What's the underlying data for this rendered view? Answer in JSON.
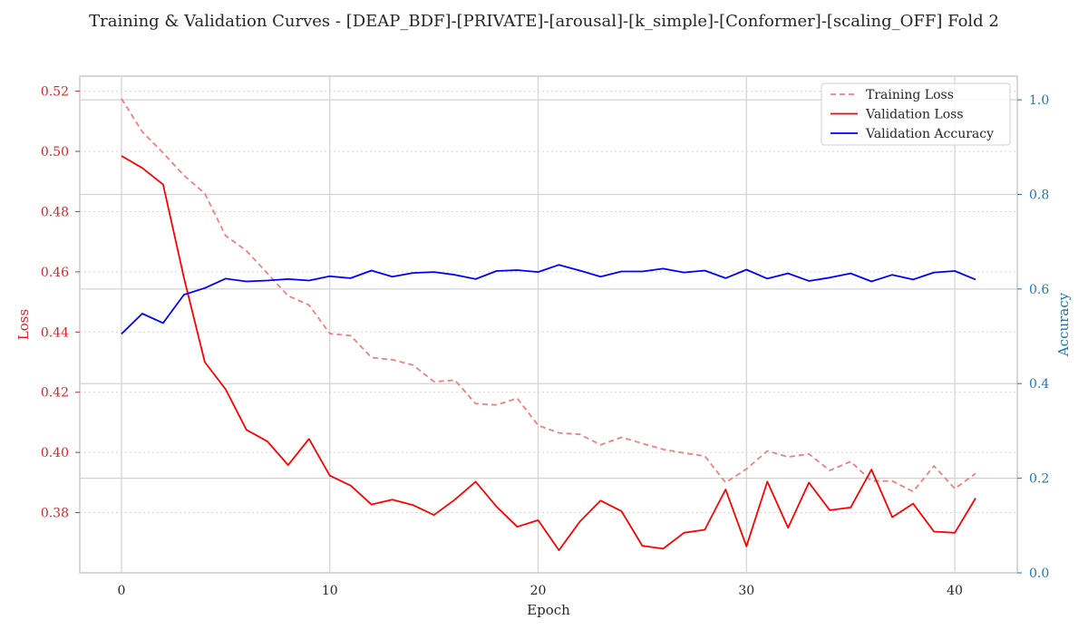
{
  "chart_data": {
    "type": "line",
    "title": "Training & Validation Curves - [DEAP_BDF]-[PRIVATE]-[arousal]-[k_simple]-[Conformer]-[scaling_OFF] Fold 2",
    "xlabel": "Epoch",
    "ylabel_left": "Loss",
    "ylabel_right": "Accuracy",
    "xlim": [
      -2,
      43
    ],
    "ylim_left": [
      0.36,
      0.525
    ],
    "ylim_right": [
      0.0,
      1.05
    ],
    "x_ticks": [
      0,
      10,
      20,
      30,
      40
    ],
    "y_ticks_left": [
      0.38,
      0.4,
      0.42,
      0.44,
      0.46,
      0.48,
      0.5,
      0.52
    ],
    "y_ticks_right": [
      0.0,
      0.2,
      0.4,
      0.6,
      0.8,
      1.0
    ],
    "grid": true,
    "legend_position": "top-right",
    "colors": {
      "left_axis": "#d62728",
      "right_axis": "#1f77b4",
      "training_loss": "#f08080",
      "validation_loss": "#ff0000",
      "validation_accuracy": "#0000ff",
      "grid": "#d3d3d3",
      "frame": "#cccccc"
    },
    "epochs": [
      0,
      1,
      2,
      3,
      4,
      5,
      6,
      7,
      8,
      9,
      10,
      11,
      12,
      13,
      14,
      15,
      16,
      17,
      18,
      19,
      20,
      21,
      22,
      23,
      24,
      25,
      26,
      27,
      28,
      29,
      30,
      31,
      32,
      33,
      34,
      35,
      36,
      37,
      38,
      39,
      40,
      41
    ],
    "series": [
      {
        "name": "Training Loss",
        "axis": "left",
        "style": "dashed",
        "values": [
          0.5175,
          0.5065,
          0.4995,
          0.492,
          0.486,
          0.472,
          0.467,
          0.4595,
          0.452,
          0.449,
          0.4395,
          0.4388,
          0.4315,
          0.4308,
          0.429,
          0.4235,
          0.424,
          0.4162,
          0.4158,
          0.418,
          0.409,
          0.4065,
          0.406,
          0.4025,
          0.405,
          0.403,
          0.401,
          0.3998,
          0.3988,
          0.39,
          0.3945,
          0.4005,
          0.3985,
          0.3995,
          0.394,
          0.397,
          0.3905,
          0.3905,
          0.387,
          0.3955,
          0.388,
          0.393
        ]
      },
      {
        "name": "Validation Loss",
        "axis": "left",
        "style": "solid",
        "values": [
          0.4985,
          0.4945,
          0.489,
          0.458,
          0.43,
          0.421,
          0.4075,
          0.4037,
          0.3958,
          0.4045,
          0.3923,
          0.389,
          0.3827,
          0.3843,
          0.3825,
          0.3792,
          0.3843,
          0.3903,
          0.382,
          0.3753,
          0.3775,
          0.3675,
          0.377,
          0.384,
          0.3805,
          0.369,
          0.368,
          0.3733,
          0.3743,
          0.3877,
          0.3688,
          0.3903,
          0.375,
          0.39,
          0.3808,
          0.3817,
          0.3943,
          0.3785,
          0.383,
          0.3737,
          0.3733,
          0.3848
        ]
      },
      {
        "name": "Validation Accuracy",
        "axis": "right",
        "style": "solid",
        "values": [
          0.505,
          0.548,
          0.528,
          0.588,
          0.602,
          0.622,
          0.616,
          0.618,
          0.621,
          0.618,
          0.627,
          0.623,
          0.639,
          0.626,
          0.634,
          0.636,
          0.63,
          0.621,
          0.638,
          0.64,
          0.636,
          0.651,
          0.639,
          0.626,
          0.637,
          0.637,
          0.643,
          0.635,
          0.639,
          0.623,
          0.641,
          0.622,
          0.633,
          0.617,
          0.624,
          0.633,
          0.616,
          0.63,
          0.62,
          0.635,
          0.638,
          0.62
        ]
      }
    ]
  }
}
